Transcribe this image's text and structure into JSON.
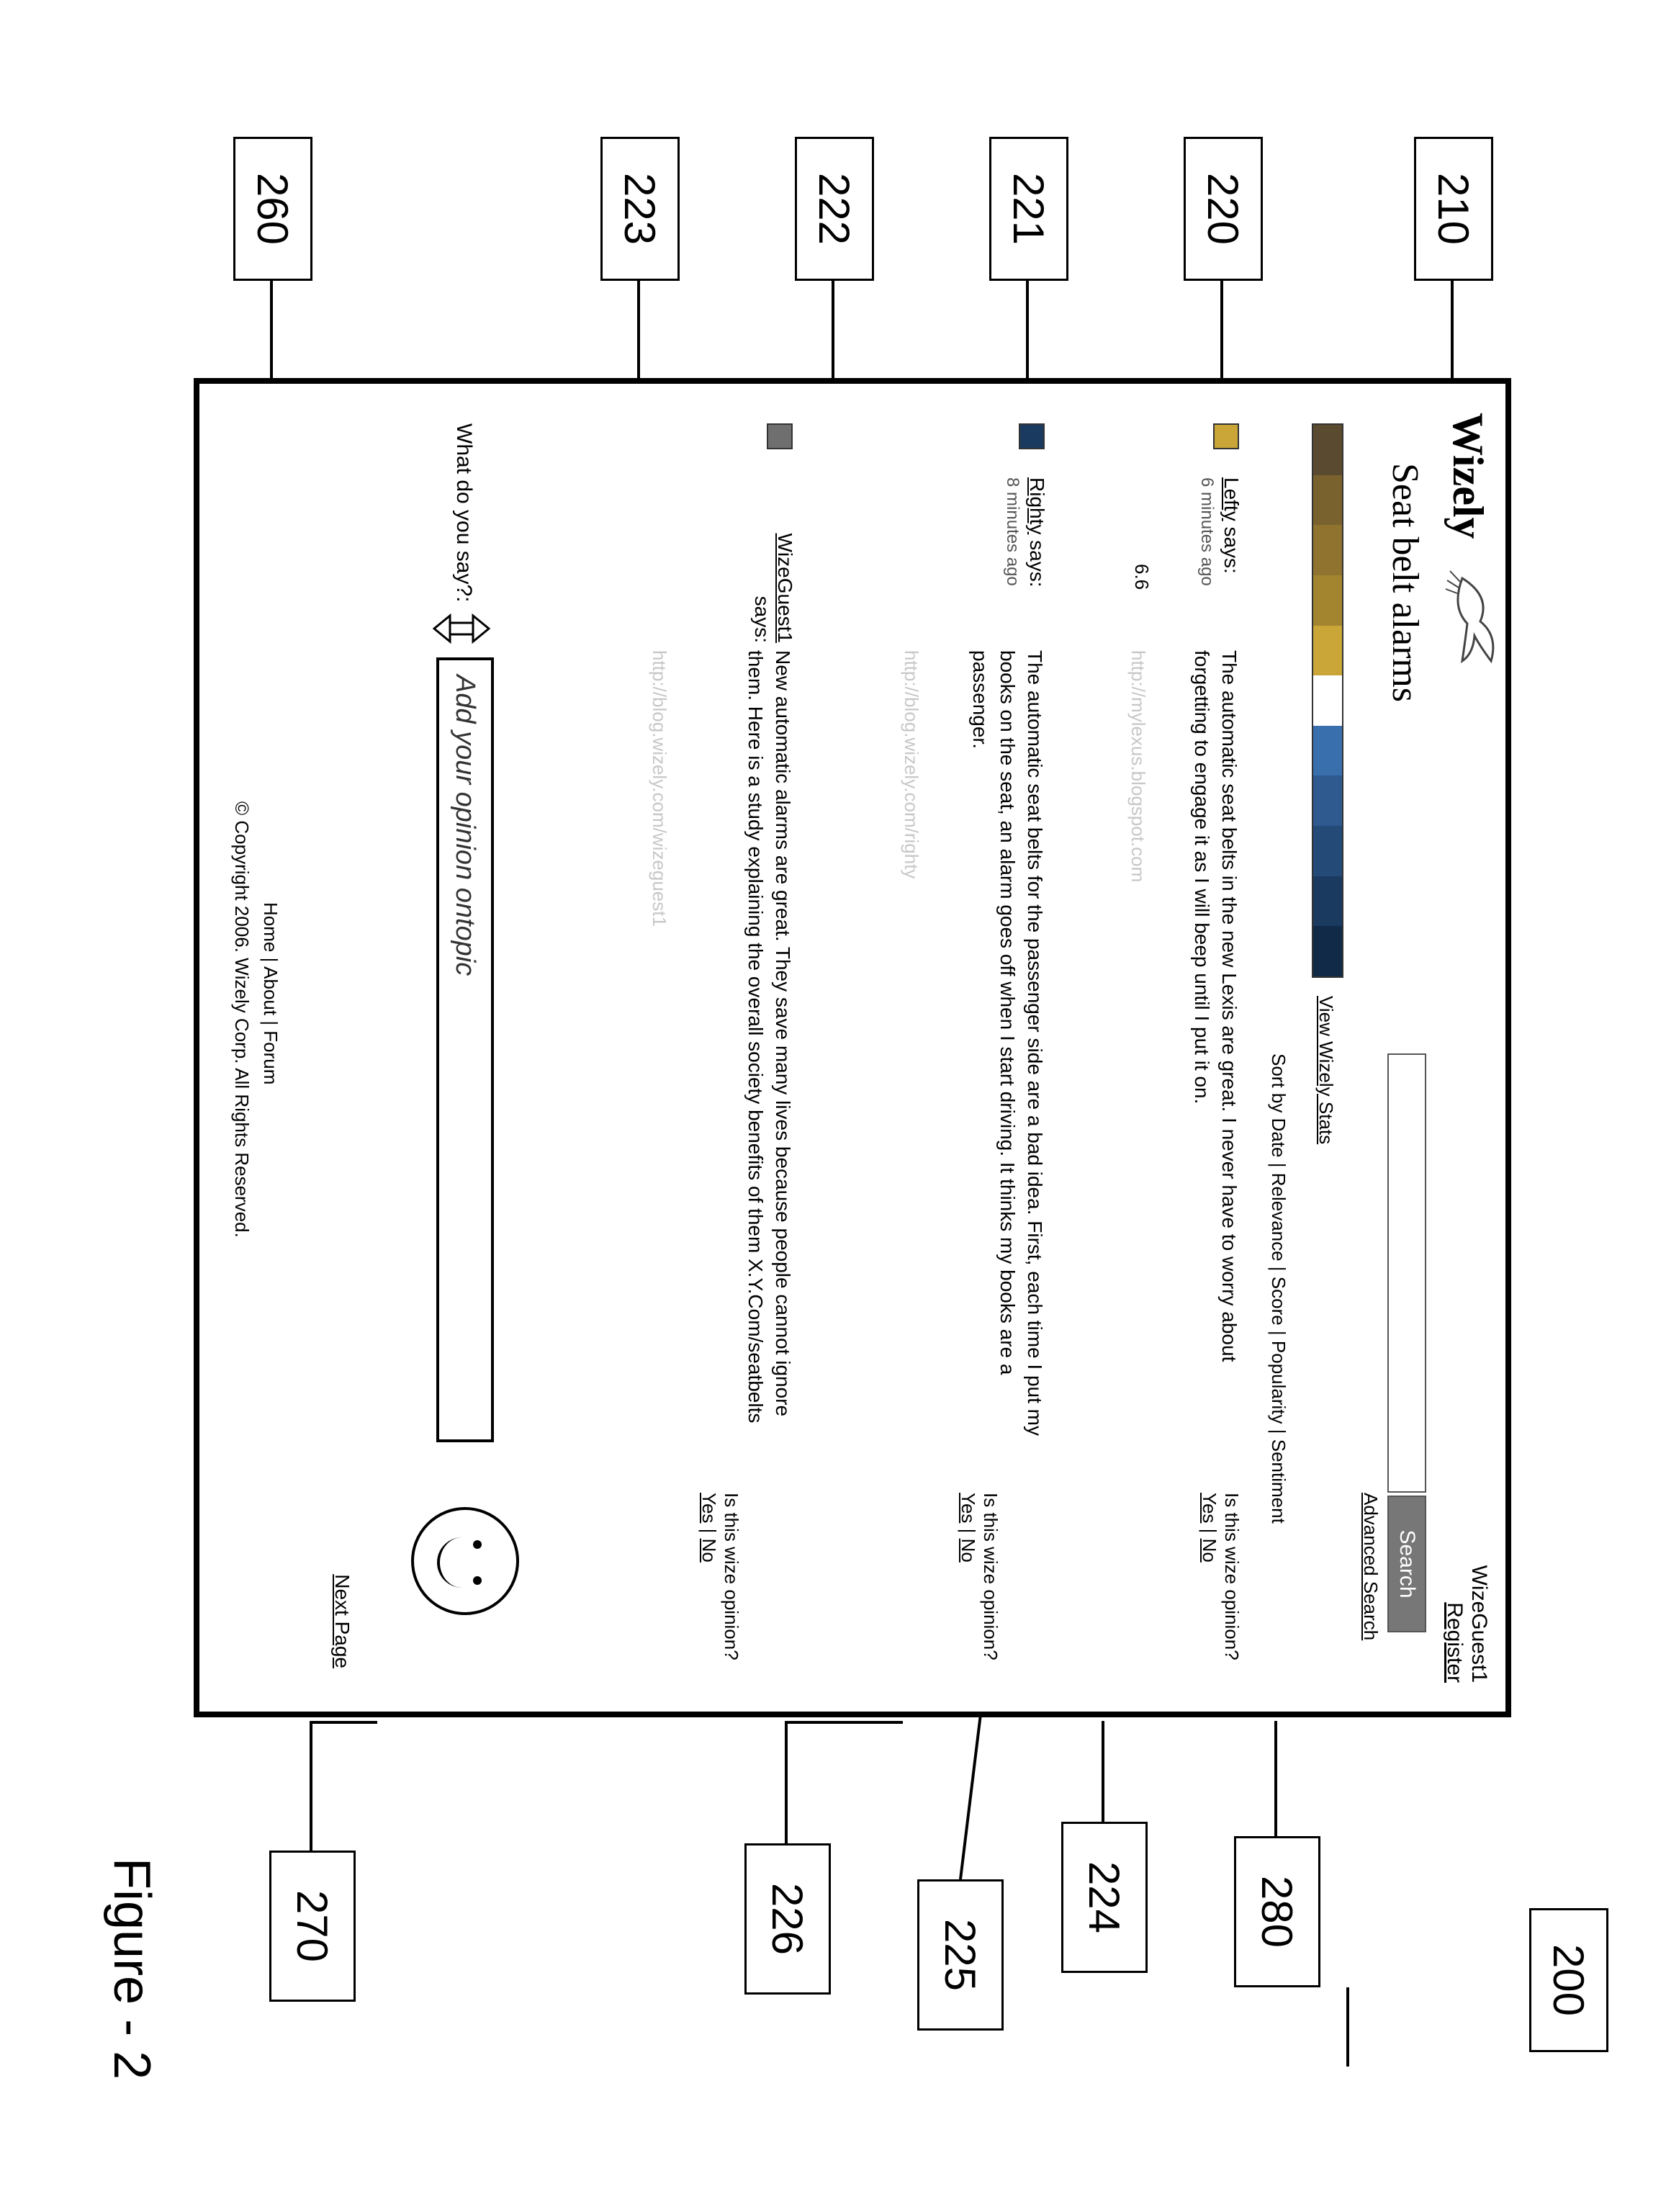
{
  "figure_label": "Figure - 2",
  "callouts": {
    "c200": "200",
    "c210": "210",
    "c220": "220",
    "c221": "221",
    "c222": "222",
    "c223": "223",
    "c224": "224",
    "c225": "225",
    "c226": "226",
    "c260": "260",
    "c270": "270",
    "c280": "280"
  },
  "brand": "Wizely",
  "user": {
    "name": "WizeGuest1",
    "register": "Register"
  },
  "topic": "Seat belt alarms",
  "search": {
    "button": "Search",
    "advanced": "Advanced Search"
  },
  "spectrum": {
    "colors": [
      "#5a4a2f",
      "#7a622f",
      "#8f732f",
      "#a3852f",
      "#c9a637",
      "#ffffff",
      "#3a6fae",
      "#2f5a90",
      "#244a78",
      "#1a3a60",
      "#102a48"
    ],
    "view_stats": "View Wizely Stats"
  },
  "sort": {
    "prefix": "Sort by ",
    "options": [
      "Date",
      "Relevance",
      "Score",
      "Popularity",
      "Sentiment"
    ]
  },
  "opinions": [
    {
      "swatch": "#c9a637",
      "author": "Lefty",
      "says": " says:",
      "time": "6 minutes ago",
      "score": "6.6",
      "text": "The automatic seat belts in the new Lexis are great. I never have to worry about forgetting to engage it as I will beep until I put it on.",
      "url": "http://mylexus.blogspot.com"
    },
    {
      "swatch": "#1a3a60",
      "author": "Righty",
      "says": " says:",
      "time": "8 minutes ago",
      "text": "The automatic seat belts for the passenger side are a bad idea. First, each time I put my books on the seat, an alarm goes off when I start driving. It thinks my books are a passenger.",
      "url": "http://blog.wizely.com/righty"
    },
    {
      "swatch": "#6f6f6f",
      "author": "WizeGuest1",
      "says": "says:",
      "time": "",
      "text": "New automatic alarms are great. They save many lives because people cannot ignore them. Here is a study explaining the overall society benefits of them X.Y.Com/seatbelts",
      "url": "http://blog.wizely.com/wizeguest1"
    }
  ],
  "wize_prompt": {
    "q": "Is this wize opinion?",
    "yes": "Yes",
    "no": "No"
  },
  "say": {
    "label": "What do you say?:",
    "placeholder_prefix": "Add your opinion on ",
    "placeholder_topic": "topic"
  },
  "next_page": "Next Page",
  "footer": {
    "links": [
      "Home",
      "About",
      "Forum"
    ],
    "copyright": "© Copyright 2006. Wizely Corp. All Rights Reserved."
  }
}
